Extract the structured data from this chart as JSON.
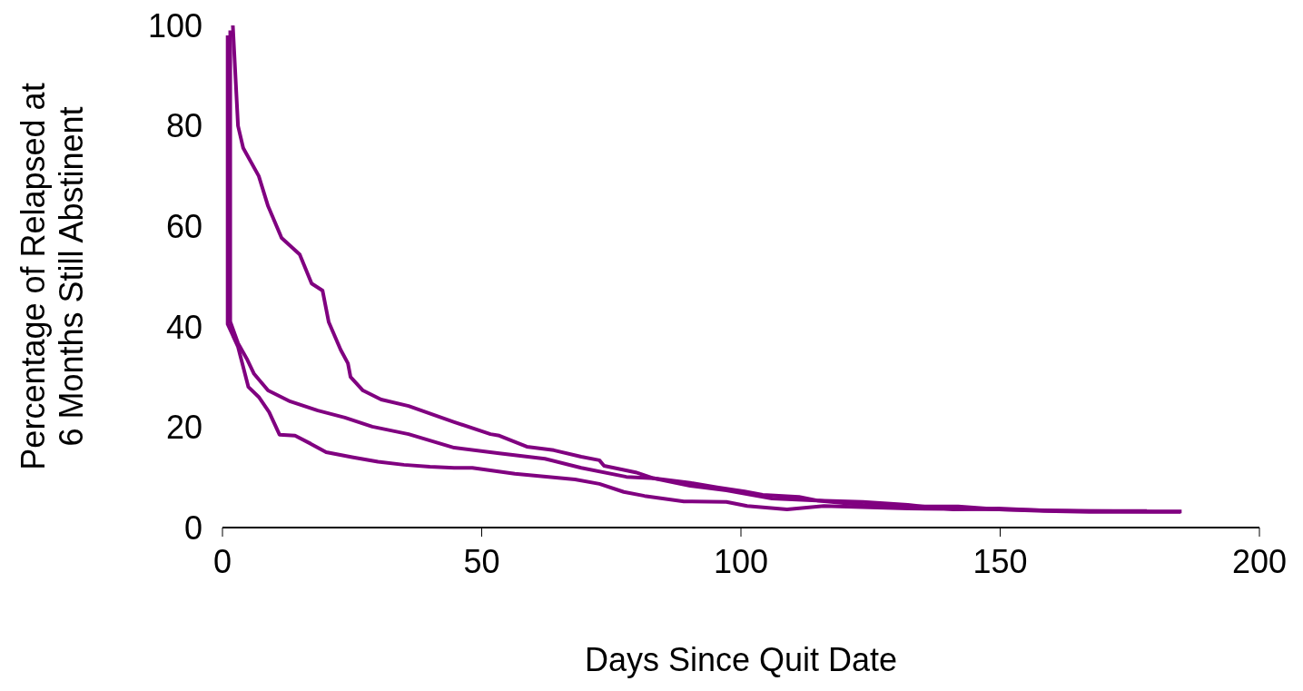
{
  "chart_data": {
    "type": "line",
    "xlabel": "Days Since Quit Date",
    "ylabel": "Percentage of Relapsed at\n6 Months Still Abstinent",
    "xlim": [
      0,
      200
    ],
    "xticks": [
      0,
      50,
      100,
      150,
      200
    ],
    "ylim": [
      0,
      100
    ],
    "yticks": [
      0,
      20,
      40,
      60,
      80,
      100
    ],
    "grid": false,
    "legend": false,
    "marker": "none",
    "line_style": "solid",
    "series": [
      {
        "color": "#800080",
        "x": [
          2,
          3,
          4,
          7,
          8.8,
          11.4,
          14.9,
          17.2,
          19.3,
          20.5,
          22.8,
          24.2,
          24.7,
          27.1,
          30.6,
          35.9,
          44.7,
          51.7,
          53.4,
          58.7,
          63.9,
          69.2,
          72.7,
          73.6,
          75.5,
          79.7,
          83.2,
          90.2,
          95.4,
          100.7,
          104.2,
          111.2,
          114.7,
          123.5,
          130.5,
          141.9,
          149.7,
          158.5,
          167.2,
          184.8
        ],
        "values": [
          100,
          80,
          75.6,
          70,
          64,
          57.7,
          54.4,
          48.6,
          47.2,
          40.9,
          35.4,
          32.7,
          30,
          27.3,
          25.5,
          24.2,
          21,
          18.6,
          18.3,
          16.1,
          15.4,
          14.1,
          13.4,
          12.3,
          11.9,
          11,
          9.8,
          8.9,
          8,
          7.2,
          6.5,
          6.1,
          5.4,
          4.5,
          4.2,
          4.2,
          3.6,
          3.3,
          3.1,
          3.1
        ]
      },
      {
        "color": "#800080",
        "x": [
          1.5,
          1.5,
          3,
          4.7,
          6.1,
          8.8,
          13.1,
          18.4,
          23.6,
          28.9,
          35.9,
          44.7,
          53.4,
          62.2,
          69.2,
          77.9,
          83.2,
          90.2,
          97.2,
          106,
          114.7,
          123.5,
          132.2,
          141,
          149.7,
          158.5,
          167.2,
          178.3
        ],
        "values": [
          99,
          41,
          36.7,
          33.6,
          30.6,
          27.3,
          25.1,
          23.3,
          21.9,
          20.1,
          18.6,
          15.9,
          14.8,
          13.7,
          11.9,
          10.1,
          9.8,
          8.3,
          7.4,
          5.8,
          5.4,
          5.1,
          4.5,
          3.6,
          3.8,
          3.4,
          3.3,
          3.3
        ]
      },
      {
        "color": "#800080",
        "x": [
          1,
          1,
          3,
          5,
          7,
          9,
          11,
          14,
          17,
          20,
          25,
          30,
          35,
          40,
          44.7,
          48.2,
          56.4,
          68,
          72.7,
          77.4,
          81.4,
          89,
          97.2,
          101.2,
          108.9,
          116,
          132.2,
          150,
          165,
          185
        ],
        "values": [
          98,
          40.5,
          36,
          28,
          26,
          23,
          18.5,
          18.3,
          16.7,
          15,
          14,
          13.1,
          12.5,
          12.1,
          11.9,
          11.9,
          10.7,
          9.6,
          8.7,
          7.1,
          6.3,
          5.2,
          5.1,
          4.3,
          3.6,
          4.3,
          3.8,
          3.6,
          3.3,
          3.2
        ]
      }
    ]
  }
}
